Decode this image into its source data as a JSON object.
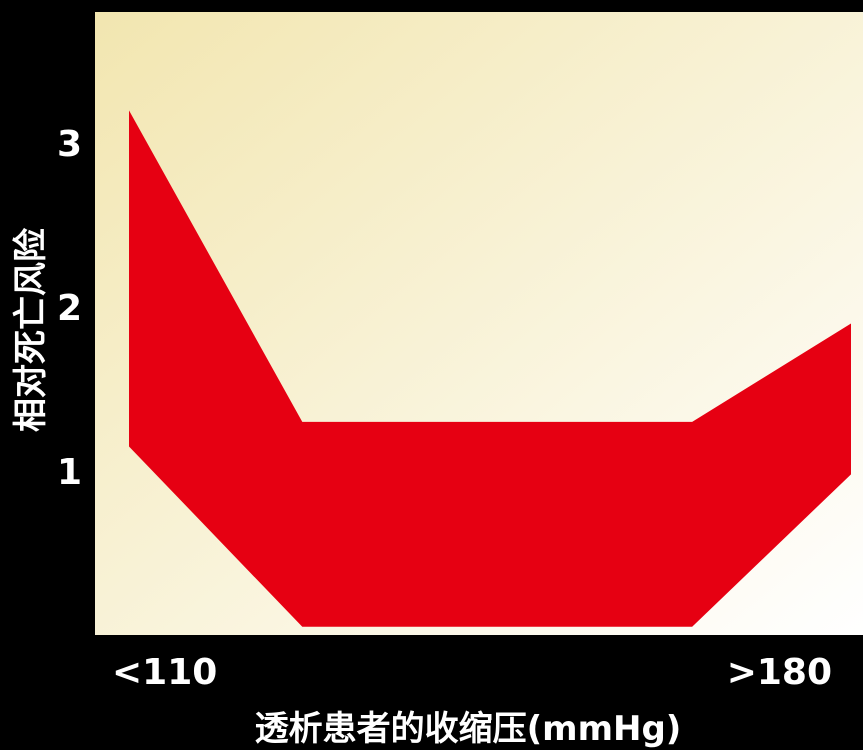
{
  "chart_data": {
    "type": "area",
    "title": "",
    "xlabel": "透析患者的收缩压(mmHg)",
    "ylabel": "相对死亡风险",
    "x_tick_labels": [
      "<110",
      ">180"
    ],
    "y_ticks": [
      1,
      2,
      3
    ],
    "ylim": [
      0,
      3.8
    ],
    "grid": false,
    "legend": "none",
    "series": [
      {
        "points": [
          {
            "x": 0.0,
            "upper": 3.2,
            "lower": 1.15
          },
          {
            "x": 0.24,
            "upper": 1.3,
            "lower": 0.05
          },
          {
            "x": 0.78,
            "upper": 1.3,
            "lower": 0.05
          },
          {
            "x": 1.0,
            "upper": 1.9,
            "lower": 0.98
          }
        ]
      }
    ],
    "colors": {
      "band": "#e60012",
      "plot_bg_left": "#f2e6b0",
      "plot_bg_right": "#ffffff",
      "page_bg": "#000000",
      "text": "#ffffff"
    }
  }
}
